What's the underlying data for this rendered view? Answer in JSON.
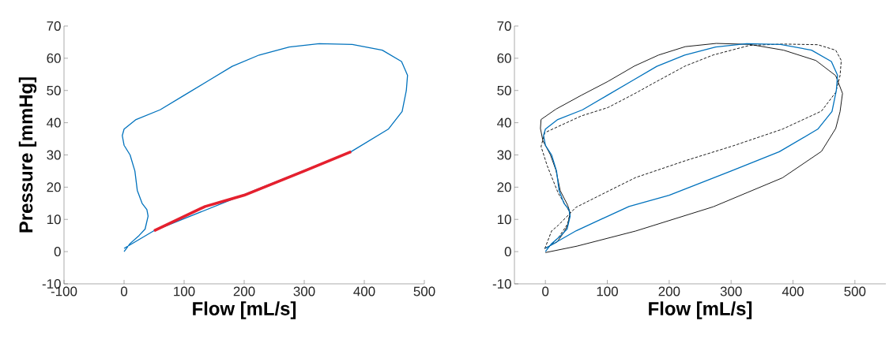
{
  "chart_data": [
    {
      "type": "line",
      "xlabel": "Flow [mL/s]",
      "ylabel": "Pressure [mmHg]",
      "xlim": [
        -100,
        500
      ],
      "ylim": [
        -10,
        70
      ],
      "xticks": [
        -100,
        0,
        100,
        200,
        300,
        400,
        500
      ],
      "yticks": [
        -10,
        0,
        10,
        20,
        30,
        40,
        50,
        60,
        70
      ],
      "series": [
        {
          "color": "#0072bd",
          "x": [
            0,
            10,
            25,
            35,
            40,
            38,
            30,
            22,
            18,
            10,
            0,
            -3,
            0,
            20,
            60,
            100,
            140,
            180,
            225,
            275,
            325,
            380,
            430,
            462,
            472,
            470,
            463,
            440,
            378,
            300,
            200,
            135,
            50,
            0
          ],
          "values": [
            0,
            2.5,
            5,
            7,
            11,
            13,
            15,
            19,
            25,
            30,
            33,
            36,
            38,
            41,
            44,
            48.5,
            53,
            57.5,
            61,
            63.5,
            64.5,
            64.3,
            62.5,
            59,
            54.7,
            50,
            43.5,
            38,
            31,
            null,
            null,
            null,
            6.5,
            1
          ]
        },
        {
          "color": "#e5202e",
          "x": [
            50,
            135,
            200,
            300,
            378
          ],
          "values": [
            6.5,
            14,
            17.5,
            25,
            31
          ]
        }
      ]
    },
    {
      "type": "line",
      "xlabel": "Flow [mL/s]",
      "xlim": [
        -50,
        550
      ],
      "ylim": [
        -10,
        70
      ],
      "xticks": [
        0,
        100,
        200,
        300,
        400,
        500
      ],
      "yticks": [
        -10,
        0,
        10,
        20,
        30,
        40,
        50,
        60,
        70
      ],
      "series": [
        {
          "color": "#000000",
          "line_style": "solid",
          "x": [
            0,
            51,
            146,
            271,
            383,
            446,
            469,
            476,
            480,
            469,
            437,
            385,
            330,
            276,
            226,
            183,
            144,
            101,
            58,
            17,
            -7,
            -8,
            -4,
            8,
            17,
            24,
            36,
            40,
            36,
            30,
            19,
            -1
          ],
          "values": [
            -0.3,
            1.7,
            6.4,
            13.9,
            22.9,
            31.1,
            38.2,
            43.4,
            49.1,
            54.6,
            59.3,
            62.5,
            64.3,
            64.6,
            63.6,
            61,
            57.6,
            52.8,
            48.5,
            44.2,
            41,
            38.2,
            34.4,
            30.1,
            25.3,
            18.9,
            14.4,
            12,
            8.2,
            6,
            3,
            1
          ]
        },
        {
          "color": "#000000",
          "line_style": "dashed",
          "x": [
            -1,
            10,
            21,
            49,
            103,
            146,
            226,
            303,
            383,
            446,
            469,
            476,
            478,
            469,
            440,
            385,
            330,
            271,
            226,
            176,
            144,
            101,
            58,
            -1,
            -7,
            3,
            21,
            35,
            40,
            36,
            21,
            3
          ],
          "values": [
            0.9,
            6.4,
            8.2,
            13.7,
            18.9,
            23,
            28.2,
            32.8,
            38,
            43.6,
            49.4,
            54.6,
            59.3,
            62.5,
            64.2,
            64.4,
            64,
            61,
            57.6,
            52.4,
            49,
            44.7,
            42.1,
            36.9,
            32.6,
            26.6,
            18,
            13.7,
            12,
            8.6,
            4.3,
            0.9
          ]
        },
        {
          "color": "#0072bd",
          "line_style": "solid",
          "x": [
            0,
            10,
            25,
            35,
            40,
            38,
            30,
            22,
            18,
            10,
            0,
            -3,
            0,
            20,
            60,
            100,
            140,
            180,
            225,
            275,
            325,
            380,
            430,
            462,
            472,
            470,
            463,
            440,
            378,
            300,
            200,
            135,
            50,
            0
          ],
          "values": [
            0,
            2.5,
            5,
            7,
            11,
            13,
            15,
            19,
            25,
            30,
            33,
            36,
            38,
            41,
            44,
            48.5,
            53,
            57.5,
            61,
            63.5,
            64.5,
            64.3,
            62.5,
            59,
            54.7,
            50,
            43.5,
            38,
            31,
            25,
            17.5,
            14,
            6.5,
            1
          ]
        }
      ]
    }
  ]
}
